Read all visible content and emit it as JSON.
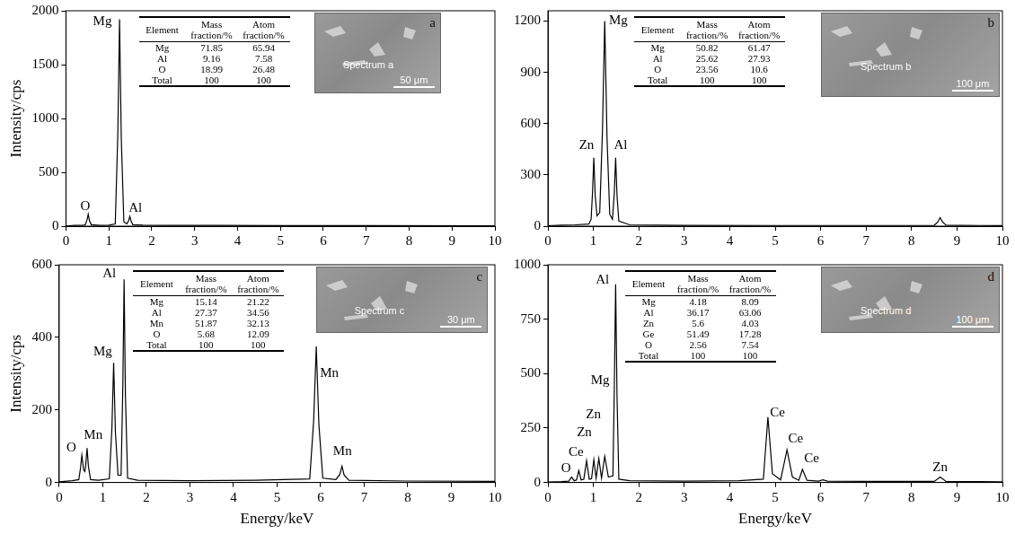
{
  "chart_data": [
    {
      "type": "line",
      "panel": "a",
      "y_label": "Intensity/cps",
      "color": "#000000",
      "xlim": [
        0,
        10
      ],
      "xticks": [
        0,
        1,
        2,
        3,
        4,
        5,
        6,
        7,
        8,
        9,
        10
      ],
      "ylim": [
        0,
        2000
      ],
      "yticks": [
        0,
        500,
        1000,
        1500,
        2000
      ],
      "x": [
        0,
        0.2,
        0.4,
        0.45,
        0.49,
        0.52,
        0.55,
        0.59,
        0.8,
        1.0,
        1.15,
        1.21,
        1.25,
        1.29,
        1.35,
        1.42,
        1.46,
        1.49,
        1.52,
        1.56,
        1.8,
        2.5,
        3.5,
        5,
        7,
        10
      ],
      "values": [
        2,
        8,
        10,
        12,
        55,
        110,
        50,
        14,
        8,
        10,
        20,
        860,
        1920,
        820,
        40,
        22,
        50,
        90,
        45,
        14,
        10,
        8,
        7,
        6,
        5,
        4
      ],
      "annotations": [
        {
          "text": "O",
          "x": 0.45,
          "y": 180
        },
        {
          "text": "Mg",
          "x": 0.85,
          "y": 1900
        },
        {
          "text": "Al",
          "x": 1.62,
          "y": 170
        }
      ],
      "table": {
        "columns": [
          "Element",
          "Mass fraction/%",
          "Atom fraction/%"
        ],
        "rows": [
          [
            "Mg",
            71.85,
            65.94
          ],
          [
            "Al",
            9.16,
            7.58
          ],
          [
            "O",
            18.99,
            26.48
          ],
          [
            "Total",
            100,
            100
          ]
        ]
      },
      "inset": {
        "label": "Spectrum a",
        "scale_bar": "50 μm"
      }
    },
    {
      "type": "line",
      "panel": "b",
      "color": "#000000",
      "xlim": [
        0,
        10
      ],
      "xticks": [
        0,
        1,
        2,
        3,
        4,
        5,
        6,
        7,
        8,
        9,
        10
      ],
      "ylim": [
        0,
        1260
      ],
      "yticks": [
        0,
        300,
        600,
        900,
        1200
      ],
      "x": [
        0,
        0.3,
        0.6,
        0.9,
        0.95,
        0.98,
        1.01,
        1.04,
        1.08,
        1.14,
        1.2,
        1.25,
        1.3,
        1.36,
        1.42,
        1.46,
        1.49,
        1.52,
        1.56,
        1.8,
        3,
        5,
        7,
        8.5,
        8.58,
        8.63,
        8.68,
        8.76,
        9.5,
        10
      ],
      "values": [
        2,
        6,
        8,
        12,
        40,
        190,
        400,
        180,
        60,
        80,
        560,
        1200,
        520,
        70,
        40,
        190,
        400,
        180,
        30,
        8,
        5,
        4,
        4,
        5,
        25,
        50,
        25,
        6,
        4,
        3
      ],
      "annotations": [
        {
          "text": "Zn",
          "x": 0.85,
          "y": 470
        },
        {
          "text": "Mg",
          "x": 1.55,
          "y": 1200
        },
        {
          "text": "Al",
          "x": 1.6,
          "y": 470
        }
      ],
      "table": {
        "columns": [
          "Element",
          "Mass fraction/%",
          "Atom fraction/%"
        ],
        "rows": [
          [
            "Mg",
            50.82,
            61.47
          ],
          [
            "Al",
            25.62,
            27.93
          ],
          [
            "O",
            23.56,
            10.6
          ],
          [
            "Total",
            100,
            100
          ]
        ]
      },
      "inset": {
        "label": "Spectrum b",
        "scale_bar": "100 μm"
      }
    },
    {
      "type": "line",
      "panel": "c",
      "y_label": "Intensity/cps",
      "x_label": "Energy/keV",
      "color": "#000000",
      "xlim": [
        0,
        10
      ],
      "xticks": [
        0,
        1,
        2,
        3,
        4,
        5,
        6,
        7,
        8,
        9,
        10
      ],
      "ylim": [
        0,
        600
      ],
      "yticks": [
        0,
        200,
        400,
        600
      ],
      "x": [
        0,
        0.3,
        0.45,
        0.49,
        0.52,
        0.56,
        0.59,
        0.61,
        0.64,
        0.67,
        0.72,
        0.9,
        1.15,
        1.21,
        1.25,
        1.29,
        1.35,
        1.42,
        1.46,
        1.49,
        1.52,
        1.57,
        1.8,
        3,
        4.5,
        5.75,
        5.84,
        5.9,
        5.96,
        6.05,
        6.35,
        6.44,
        6.49,
        6.54,
        6.65,
        8,
        10
      ],
      "values": [
        2,
        5,
        8,
        40,
        75,
        35,
        30,
        50,
        95,
        45,
        8,
        6,
        10,
        150,
        330,
        140,
        20,
        20,
        260,
        560,
        240,
        12,
        6,
        5,
        6,
        10,
        170,
        375,
        160,
        12,
        8,
        22,
        45,
        20,
        6,
        4,
        3
      ],
      "annotations": [
        {
          "text": "O",
          "x": 0.28,
          "y": 95
        },
        {
          "text": "Mn",
          "x": 0.78,
          "y": 130
        },
        {
          "text": "Mg",
          "x": 1.0,
          "y": 360
        },
        {
          "text": "Al",
          "x": 1.15,
          "y": 575
        },
        {
          "text": "Mn",
          "x": 6.2,
          "y": 300
        },
        {
          "text": "Mn",
          "x": 6.5,
          "y": 85
        }
      ],
      "table": {
        "columns": [
          "Element",
          "Mass fraction/%",
          "Atom fraction/%"
        ],
        "rows": [
          [
            "Mg",
            15.14,
            21.22
          ],
          [
            "Al",
            27.37,
            34.56
          ],
          [
            "Mn",
            51.87,
            32.13
          ],
          [
            "O",
            5.68,
            12.09
          ],
          [
            "Total",
            100,
            100
          ]
        ]
      },
      "inset": {
        "label": "Spectrum c",
        "scale_bar": "30 μm"
      }
    },
    {
      "type": "line",
      "panel": "d",
      "x_label": "Energy/keV",
      "color": "#000000",
      "xlim": [
        0,
        10
      ],
      "xticks": [
        0,
        1,
        2,
        3,
        4,
        5,
        6,
        7,
        8,
        9,
        10
      ],
      "ylim": [
        0,
        1000
      ],
      "yticks": [
        0,
        250,
        500,
        750,
        1000
      ],
      "x": [
        0,
        0.3,
        0.46,
        0.52,
        0.58,
        0.63,
        0.68,
        0.73,
        0.79,
        0.85,
        0.91,
        0.96,
        1.01,
        1.06,
        1.12,
        1.18,
        1.25,
        1.33,
        1.43,
        1.46,
        1.49,
        1.52,
        1.56,
        1.8,
        3,
        4.2,
        4.74,
        4.84,
        4.94,
        5.12,
        5.26,
        5.38,
        5.52,
        5.6,
        5.7,
        5.95,
        6.05,
        6.15,
        7,
        8.5,
        8.63,
        8.76,
        9.5,
        10
      ],
      "values": [
        2,
        4,
        6,
        25,
        8,
        12,
        55,
        12,
        15,
        100,
        15,
        18,
        105,
        20,
        110,
        20,
        120,
        25,
        30,
        420,
        910,
        400,
        15,
        8,
        6,
        8,
        15,
        300,
        40,
        12,
        150,
        25,
        10,
        60,
        10,
        6,
        12,
        6,
        5,
        5,
        25,
        5,
        4,
        3
      ],
      "annotations": [
        {
          "text": "O",
          "x": 0.4,
          "y": 65
        },
        {
          "text": "Ce",
          "x": 0.62,
          "y": 140
        },
        {
          "text": "Zn",
          "x": 0.8,
          "y": 230
        },
        {
          "text": "Zn",
          "x": 1.0,
          "y": 310
        },
        {
          "text": "Mg",
          "x": 1.15,
          "y": 470
        },
        {
          "text": "Al",
          "x": 1.2,
          "y": 930
        },
        {
          "text": "Ce",
          "x": 5.05,
          "y": 320
        },
        {
          "text": "Ce",
          "x": 5.45,
          "y": 200
        },
        {
          "text": "Ce",
          "x": 5.8,
          "y": 110
        },
        {
          "text": "Zn",
          "x": 8.63,
          "y": 70
        }
      ],
      "table": {
        "columns": [
          "Element",
          "Mass fraction/%",
          "Atom fraction/%"
        ],
        "rows": [
          [
            "Mg",
            4.18,
            8.09
          ],
          [
            "Al",
            36.17,
            63.06
          ],
          [
            "Zn",
            5.6,
            4.03
          ],
          [
            "Ge",
            51.49,
            17.28
          ],
          [
            "O",
            2.56,
            7.54
          ],
          [
            "Total",
            100,
            100
          ]
        ]
      },
      "inset": {
        "label": "Spectrum d",
        "scale_bar": "100 μm"
      }
    }
  ]
}
